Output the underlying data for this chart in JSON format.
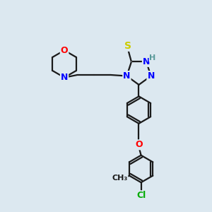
{
  "bg_color": "#dce8f0",
  "bond_color": "#1a1a1a",
  "atom_colors": {
    "N": "#0000ff",
    "O": "#ff0000",
    "S": "#cccc00",
    "Cl": "#00aa00",
    "H": "#5a9a9a",
    "C": "#1a1a1a"
  },
  "bond_width": 1.6,
  "font_size": 9,
  "figsize": [
    3.0,
    3.0
  ],
  "dpi": 100
}
